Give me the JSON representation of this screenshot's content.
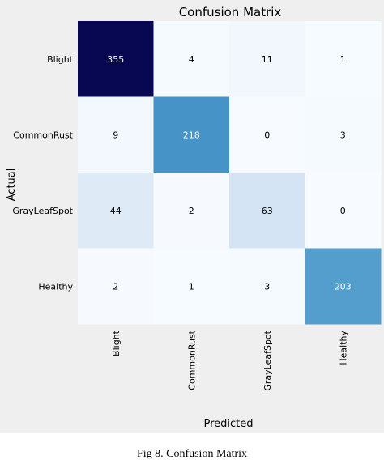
{
  "chart_data": {
    "type": "heatmap",
    "title": "Confusion Matrix",
    "xlabel": "Predicted",
    "ylabel": "Actual",
    "x_categories": [
      "Blight",
      "CommonRust",
      "GrayLeafSpot",
      "Healthy"
    ],
    "y_categories": [
      "Blight",
      "CommonRust",
      "GrayLeafSpot",
      "Healthy"
    ],
    "values": [
      [
        355,
        4,
        11,
        1
      ],
      [
        9,
        218,
        0,
        3
      ],
      [
        44,
        2,
        63,
        0
      ],
      [
        2,
        1,
        3,
        203
      ]
    ],
    "colormap": "Blues",
    "vmin": 0,
    "vmax": 355,
    "colorbar": false,
    "grid": false
  },
  "caption": "Fig 8.  Confusion Matrix"
}
